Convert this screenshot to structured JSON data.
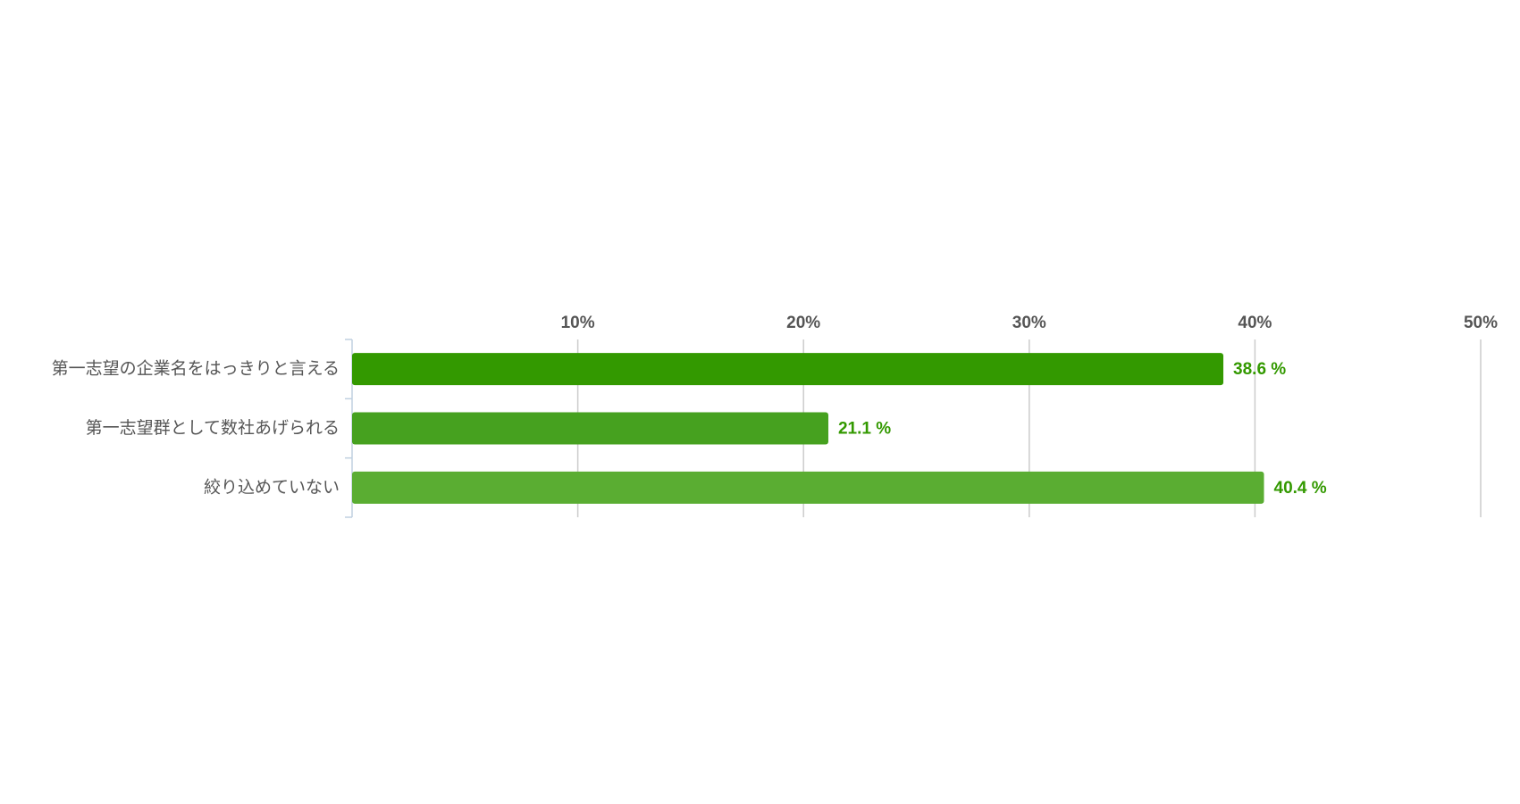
{
  "chart_data": {
    "type": "bar",
    "orientation": "horizontal",
    "categories": [
      "第一志望の企業名をはっきりと言える",
      "第一志望群として数社あげられる",
      "絞り込めていない"
    ],
    "values": [
      38.6,
      21.1,
      40.4
    ],
    "value_labels": [
      "38.6 %",
      "21.1 %",
      "40.4 %"
    ],
    "colors": [
      "#339900",
      "#46a11f",
      "#5aad32"
    ],
    "xlim": [
      0,
      50
    ],
    "xticks": [
      {
        "value": 10,
        "label": "10%"
      },
      {
        "value": 20,
        "label": "20%"
      },
      {
        "value": 30,
        "label": "30%"
      },
      {
        "value": 40,
        "label": "40%"
      },
      {
        "value": 50,
        "label": "50%"
      }
    ],
    "grid": true
  }
}
